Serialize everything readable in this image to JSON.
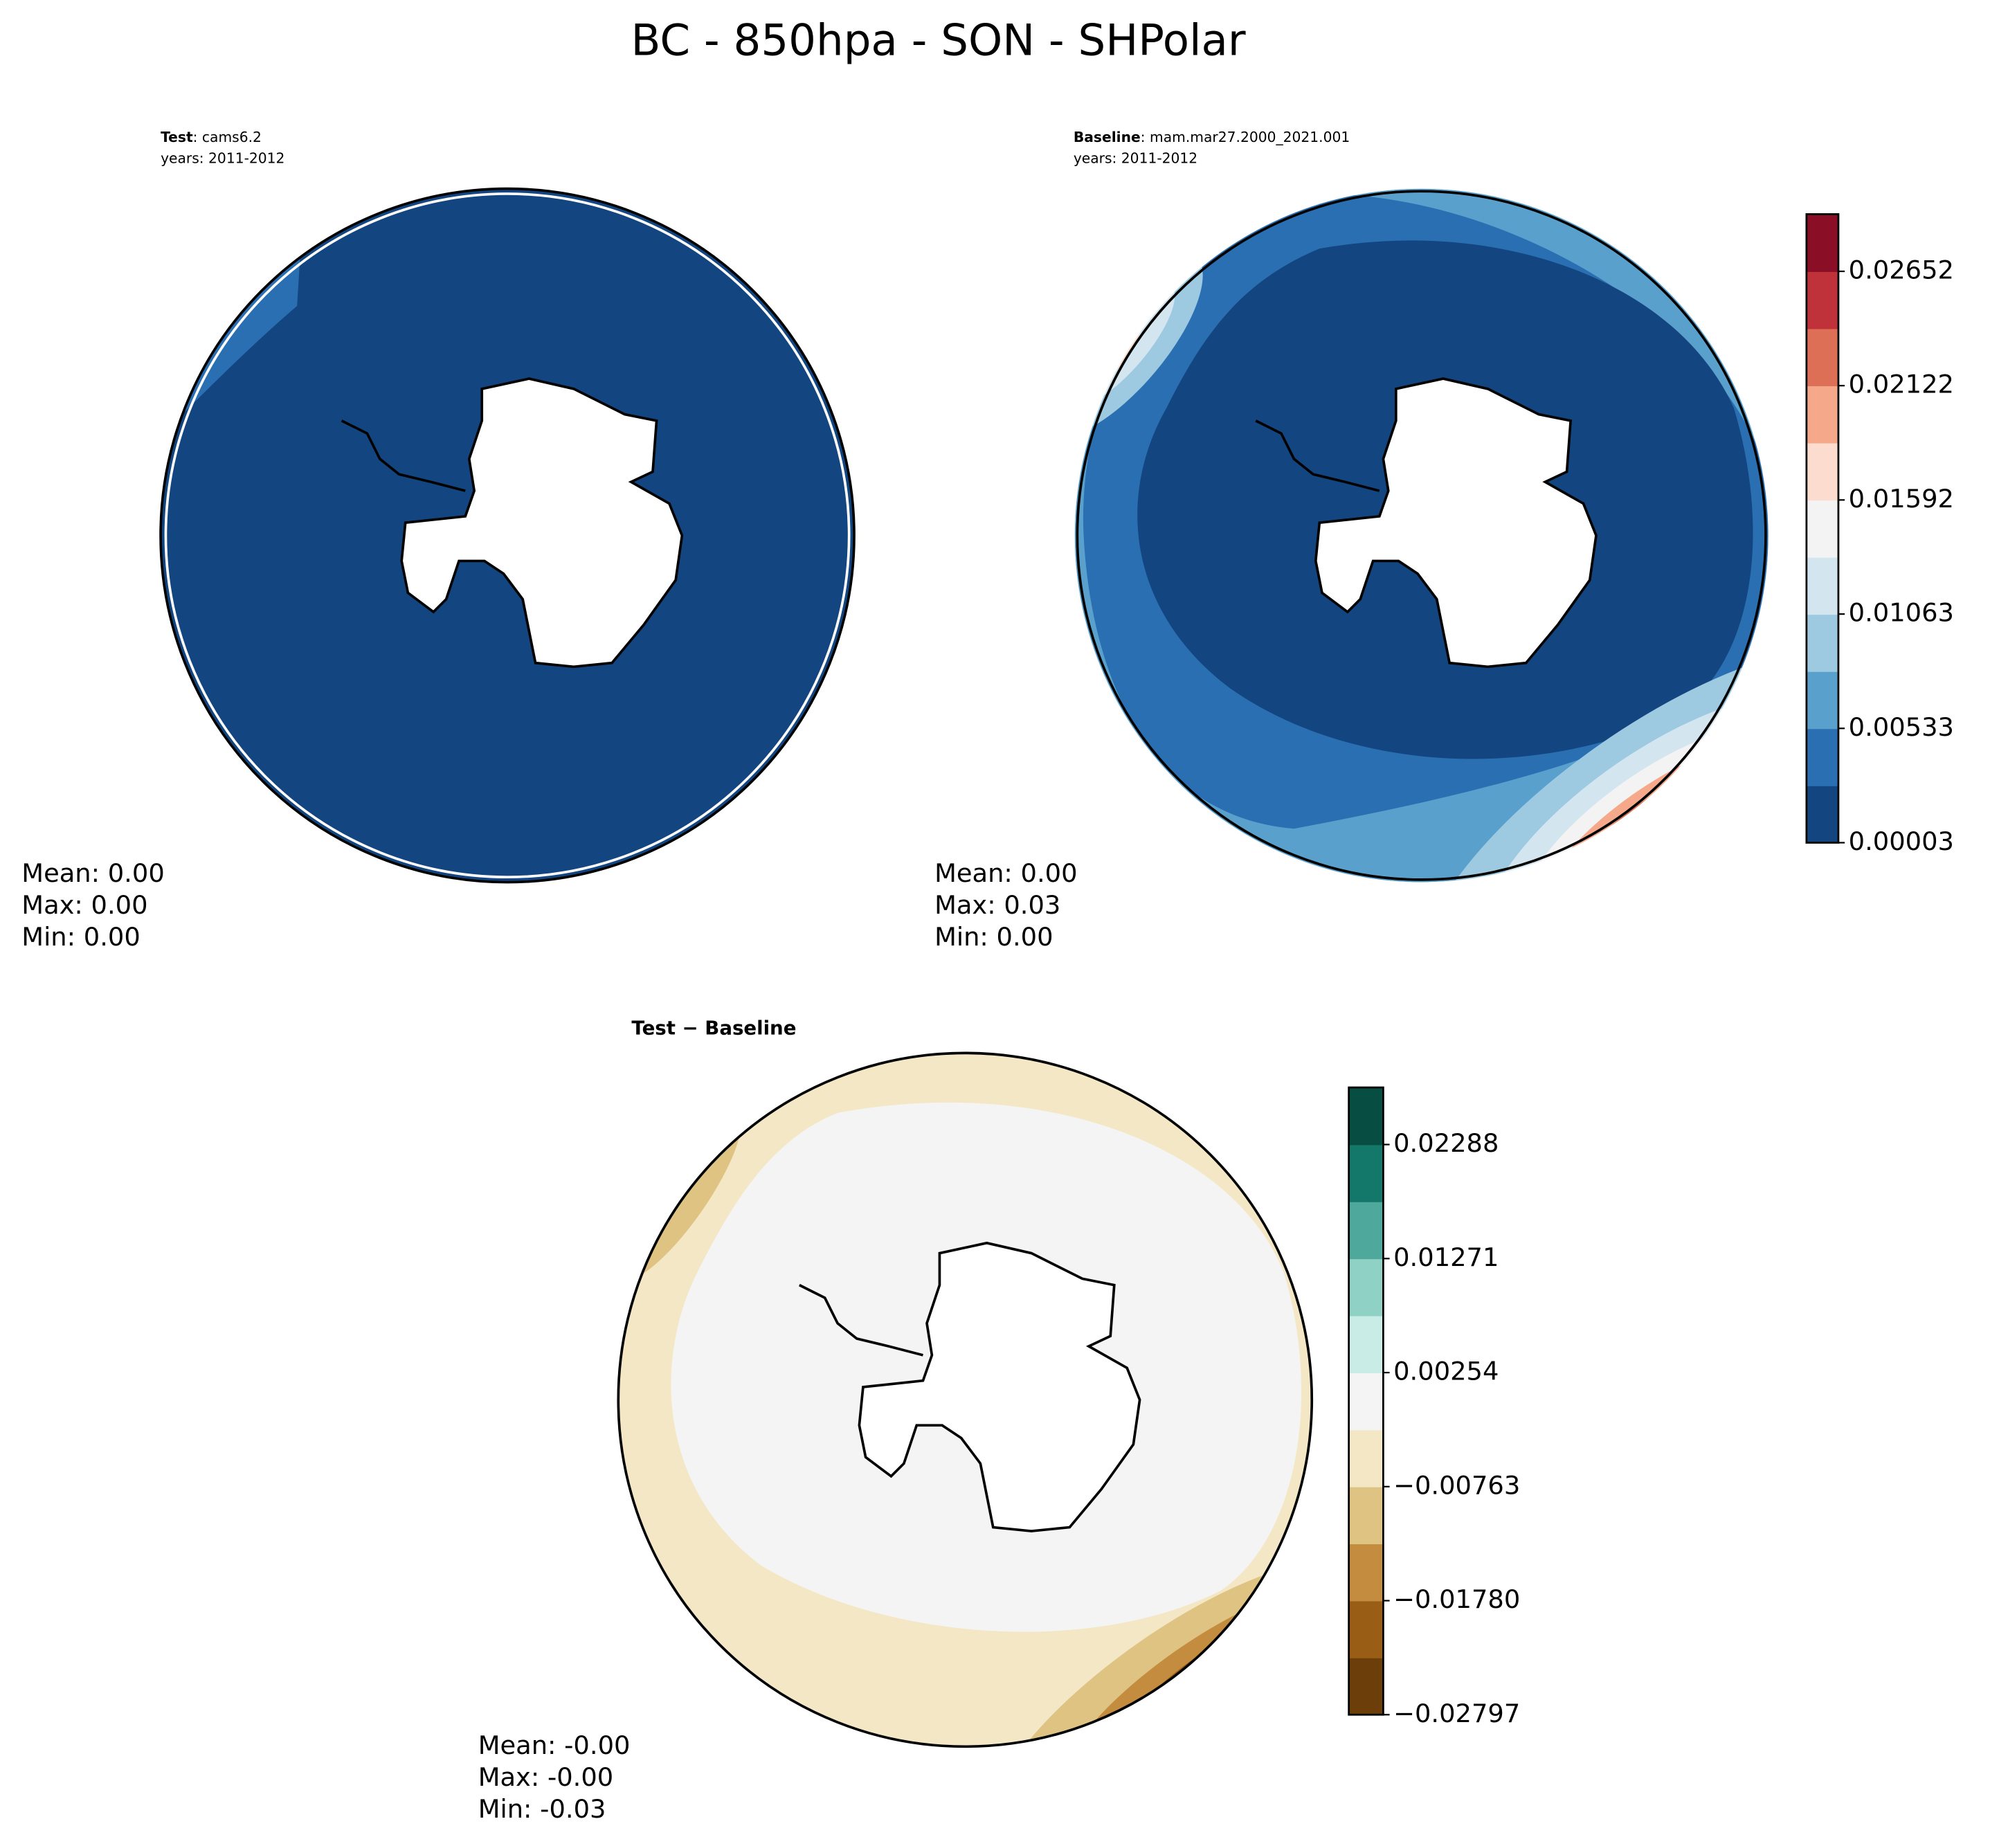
{
  "title": "BC - 850hpa - SON - SHPolar",
  "panels": [
    {
      "name_bold": "Test",
      "name": ": cams6.2",
      "years": "years: 2011-2012",
      "stats": [
        "Mean:  0.00",
        "Max:  0.00",
        "Min:  0.00"
      ]
    },
    {
      "name_bold": "Baseline",
      "name": ": mam.mar27.2000_2021.001",
      "years": "years: 2011-2012",
      "stats": [
        "Mean:  0.00",
        "Max:  0.03",
        "Min:  0.00"
      ]
    },
    {
      "name_bold": "Test − Baseline",
      "stats": [
        "Mean: -0.00",
        "Max: -0.00",
        "Min: -0.03"
      ]
    }
  ],
  "colorbars": [
    {
      "lim": [
        3e-05,
        0.02917
      ],
      "colors": [
        "#134680",
        "#2b6fb3",
        "#5aa0cd",
        "#9dc9e1",
        "#d3e6f0",
        "#f3f3f3",
        "#fcdcce",
        "#f6a98a",
        "#de6f57",
        "#c0323a",
        "#8a0e25"
      ],
      "ticks": [
        3e-05,
        0.00533,
        0.01063,
        0.01592,
        0.02122,
        0.02652
      ]
    },
    {
      "lim": [
        -0.02797,
        0.02797
      ],
      "colors": [
        "#6b3e0a",
        "#9a5d16",
        "#c38c3f",
        "#dfc383",
        "#f4e7c5",
        "#f3f4f3",
        "#c9ece6",
        "#8fd1c4",
        "#4ea89b",
        "#137769",
        "#074d41"
      ],
      "ticks": [
        {
          "value": -0.02797,
          "label": "−0.02797"
        },
        {
          "value": -0.0178,
          "label": "−0.01780"
        },
        {
          "value": -0.00763,
          "label": "−0.00763"
        },
        0.00254,
        0.01271,
        0.02288
      ]
    }
  ]
}
